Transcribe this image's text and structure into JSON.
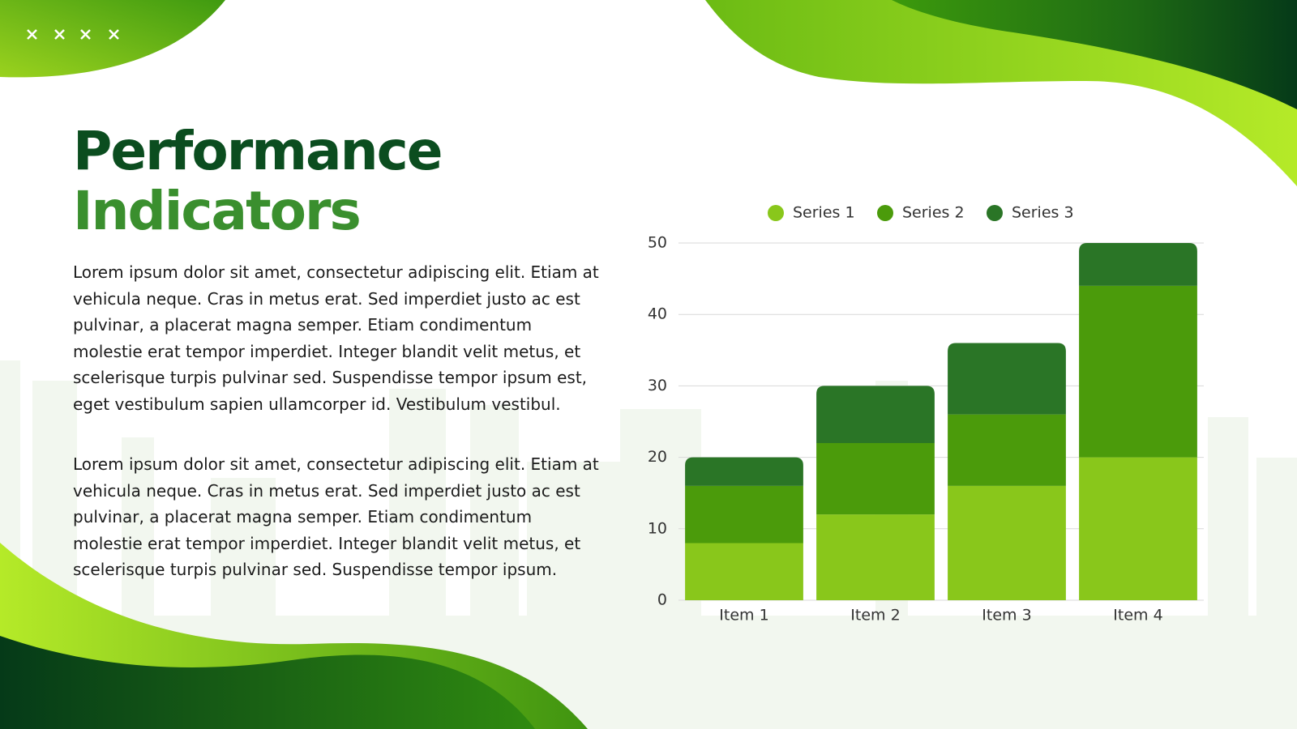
{
  "slide": {
    "title": [
      "Performance",
      "Indicators"
    ],
    "paragraphs": [
      "Lorem ipsum dolor sit amet, consectetur adipiscing elit. Etiam at vehicula neque. Cras in metus erat. Sed imperdiet justo ac est pulvinar, a placerat magna semper. Etiam condimentum molestie erat tempor imperdiet. Integer blandit velit metus, et scelerisque turpis pulvinar sed. Suspendisse tempor ipsum est, eget vestibulum sapien ullamcorper id. Vestibulum vestibul.",
      "Lorem ipsum dolor sit amet, consectetur adipiscing elit. Etiam at vehicula neque. Cras in metus erat. Sed imperdiet justo ac est pulvinar, a placerat magna semper. Etiam condimentum molestie erat tempor imperdiet. Integer blandit velit metus, et scelerisque turpis pulvinar sed. Suspendisse tempor ipsum."
    ]
  },
  "chart_data": {
    "type": "stacked_bar",
    "categories": [
      "Item 1",
      "Item 2",
      "Item 3",
      "Item 4"
    ],
    "series": [
      {
        "name": "Series 1",
        "color": "#89c71b",
        "values": [
          8,
          12,
          16,
          20
        ]
      },
      {
        "name": "Series 2",
        "color": "#4b9b0b",
        "values": [
          8,
          10,
          10,
          24
        ]
      },
      {
        "name": "Series 3",
        "color": "#2a7526",
        "values": [
          4,
          8,
          10,
          6
        ]
      }
    ],
    "ylim": [
      0,
      50
    ],
    "yticks": [
      0,
      10,
      20,
      30,
      40,
      50
    ],
    "grid": true,
    "legend": "top"
  }
}
